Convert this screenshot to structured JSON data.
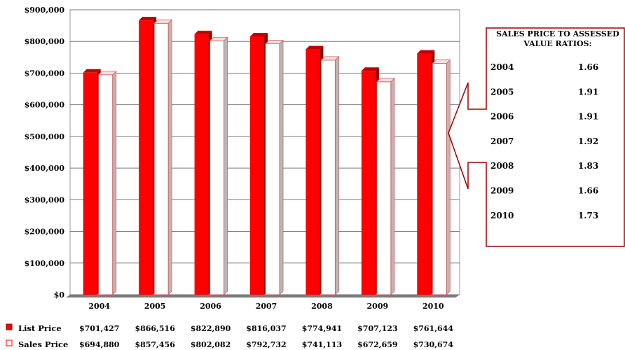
{
  "chart_data": {
    "type": "bar",
    "categories": [
      "2004",
      "2005",
      "2006",
      "2007",
      "2008",
      "2009",
      "2010"
    ],
    "series": [
      {
        "name": "List Price",
        "color": "#ff0000",
        "values": [
          701427,
          866516,
          822890,
          816037,
          774941,
          707123,
          761644
        ],
        "labels": [
          "$701,427",
          "$866,516",
          "$822,890",
          "$816,037",
          "$774,941",
          "$707,123",
          "$761,644"
        ]
      },
      {
        "name": "Sales Price",
        "color": "#ffffff",
        "values": [
          694880,
          857456,
          802082,
          792732,
          741113,
          672659,
          730674
        ],
        "labels": [
          "$694,880",
          "$857,456",
          "$802,082",
          "$792,732",
          "$741,113",
          "$672,659",
          "$730,674"
        ]
      }
    ],
    "ylim": [
      0,
      900000
    ],
    "yticks": [
      0,
      100000,
      200000,
      300000,
      400000,
      500000,
      600000,
      700000,
      800000,
      900000
    ],
    "ytick_labels": [
      "$0",
      "$100,000",
      "$200,000",
      "$300,000",
      "$400,000",
      "$500,000",
      "$600,000",
      "$700,000",
      "$800,000",
      "$900,000"
    ],
    "grid": true,
    "legend": "data-table-bottom"
  },
  "ratios": {
    "title_line1": "SALES PRICE TO ASSESSED",
    "title_line2": "VALUE RATIOS:",
    "rows": [
      {
        "year": "2004",
        "value": "1.66"
      },
      {
        "year": "2005",
        "value": "1.91"
      },
      {
        "year": "2006",
        "value": "1.91"
      },
      {
        "year": "2007",
        "value": "1.92"
      },
      {
        "year": "2008",
        "value": "1.83"
      },
      {
        "year": "2009",
        "value": "1.66"
      },
      {
        "year": "2010",
        "value": "1.73"
      }
    ]
  },
  "colors": {
    "list": "#ff0000",
    "list_top": "#c00000",
    "list_side": "#8b0000",
    "sales_edge": "#d06060",
    "callout": "#a00000"
  }
}
